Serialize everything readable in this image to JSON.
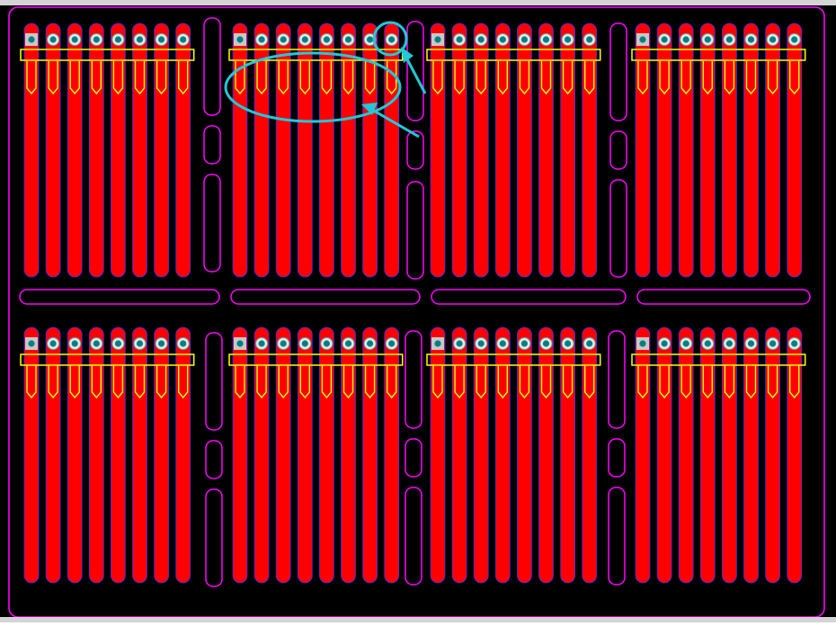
{
  "canvas": {
    "background": "#000000",
    "frame_color": "#d4d4d4"
  },
  "board": {
    "outline_color": "#ff00ff",
    "columns": 4,
    "rows": 2,
    "pins_per_group": 8
  },
  "colors": {
    "copper": "#ff0000",
    "copper_edge": "#3030ff",
    "silkscreen": "#ffff00",
    "slot_outline": "#ff00ff",
    "pad": "#c8c8c8",
    "via": "#008080",
    "via_ring": "#66aaaa",
    "annotation": "#22c8d8"
  },
  "icons": {
    "pad": "square-pad-icon",
    "via": "via-icon"
  },
  "annotations": [
    {
      "shape": "circle",
      "target": "first-pin-square-pad"
    },
    {
      "shape": "ellipse",
      "target": "silkscreen-pin-outlines"
    }
  ]
}
